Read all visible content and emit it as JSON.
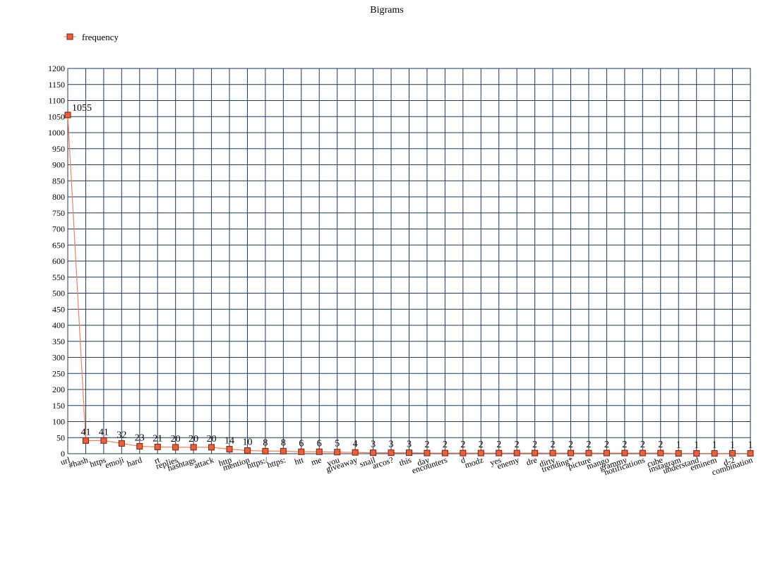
{
  "chart_data": {
    "type": "line",
    "title": "Bigrams",
    "xlabel": "",
    "ylabel": "",
    "ylim": [
      0,
      1200
    ],
    "ytick_step": 50,
    "grid": true,
    "legend_placement": "top-left",
    "categories": [
      "url",
      "#hash",
      "https",
      "emoji",
      "hard",
      "rt",
      "replies",
      "hashtags",
      "attack",
      "http",
      "mention",
      "https:/",
      "https:",
      "htt",
      "me",
      "you",
      "giveaway",
      "snail",
      "arcos?",
      "this",
      "day",
      "encounters",
      "d",
      "modz",
      "yes",
      "enemy",
      "dre",
      "dirty",
      "trending*",
      "picture",
      "mango",
      "grammy",
      "notifications",
      "cube",
      "instagram",
      "understand",
      "eminem",
      "d-2",
      "combination"
    ],
    "series": [
      {
        "name": "frequency",
        "values": [
          1055,
          41,
          41,
          32,
          23,
          21,
          20,
          20,
          20,
          14,
          10,
          8,
          8,
          6,
          6,
          5,
          4,
          3,
          3,
          3,
          2,
          2,
          2,
          2,
          2,
          2,
          2,
          2,
          2,
          2,
          2,
          2,
          2,
          2,
          1,
          1,
          1,
          1,
          1
        ],
        "line_color": "#f08060",
        "marker_fill": "#e8603c",
        "marker_stroke": "#7a2010"
      }
    ],
    "data_labels": [
      "1055",
      "41",
      "41",
      "32",
      "23",
      "21",
      "20",
      "20",
      "20",
      "14",
      "10",
      "8",
      "8",
      "6",
      "6",
      "5",
      "4",
      "3",
      "3",
      "3",
      "2",
      "2",
      "2",
      "2",
      "2",
      "2",
      "2",
      "2",
      "2",
      "2",
      "2",
      "2",
      "2",
      "2",
      "1",
      "1",
      "1",
      "1",
      "1"
    ],
    "grid_color": "#1f3a5a"
  }
}
